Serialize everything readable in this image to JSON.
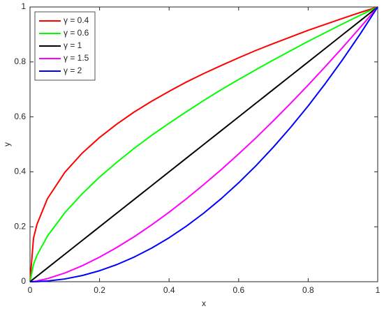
{
  "chart_data": {
    "type": "line",
    "x_label": "x",
    "y_label": "y",
    "x": [
      0,
      0.01,
      0.02,
      0.05,
      0.1,
      0.15,
      0.2,
      0.25,
      0.3,
      0.35,
      0.4,
      0.45,
      0.5,
      0.55,
      0.6,
      0.65,
      0.7,
      0.75,
      0.8,
      0.85,
      0.9,
      0.95,
      1
    ],
    "series": [
      {
        "name": "γ = 0.4",
        "color": "#ff0000",
        "values": [
          0,
          0.158,
          0.209,
          0.302,
          0.398,
          0.468,
          0.525,
          0.574,
          0.618,
          0.657,
          0.693,
          0.727,
          0.758,
          0.787,
          0.815,
          0.842,
          0.867,
          0.891,
          0.915,
          0.937,
          0.959,
          0.98,
          1
        ]
      },
      {
        "name": "γ = 0.6",
        "color": "#00ff00",
        "values": [
          0,
          0.063,
          0.096,
          0.166,
          0.251,
          0.32,
          0.381,
          0.435,
          0.486,
          0.533,
          0.577,
          0.619,
          0.66,
          0.699,
          0.736,
          0.772,
          0.807,
          0.841,
          0.875,
          0.907,
          0.939,
          0.97,
          1
        ]
      },
      {
        "name": "γ = 1",
        "color": "#000000",
        "values": [
          0,
          0.01,
          0.02,
          0.05,
          0.1,
          0.15,
          0.2,
          0.25,
          0.3,
          0.35,
          0.4,
          0.45,
          0.5,
          0.55,
          0.6,
          0.65,
          0.7,
          0.75,
          0.8,
          0.85,
          0.9,
          0.95,
          1
        ]
      },
      {
        "name": "γ = 1.5",
        "color": "#ff00ff",
        "values": [
          0,
          0.001,
          0.00283,
          0.0112,
          0.0316,
          0.0581,
          0.0894,
          0.125,
          0.164,
          0.207,
          0.253,
          0.302,
          0.354,
          0.408,
          0.465,
          0.524,
          0.586,
          0.65,
          0.716,
          0.784,
          0.854,
          0.926,
          1
        ]
      },
      {
        "name": "γ = 2",
        "color": "#0000ff",
        "values": [
          0,
          0.0001,
          0.0004,
          0.0025,
          0.01,
          0.0225,
          0.04,
          0.0625,
          0.09,
          0.1225,
          0.16,
          0.2025,
          0.25,
          0.3025,
          0.36,
          0.4225,
          0.49,
          0.5625,
          0.64,
          0.7225,
          0.81,
          0.9025,
          1
        ]
      }
    ],
    "xlim": [
      0,
      1
    ],
    "ylim": [
      0,
      1
    ],
    "xticks": [
      0,
      0.2,
      0.4,
      0.6,
      0.8,
      1
    ],
    "yticks": [
      0,
      0.2,
      0.4,
      0.6,
      0.8,
      1
    ],
    "grid": false,
    "legend": "top-left"
  }
}
